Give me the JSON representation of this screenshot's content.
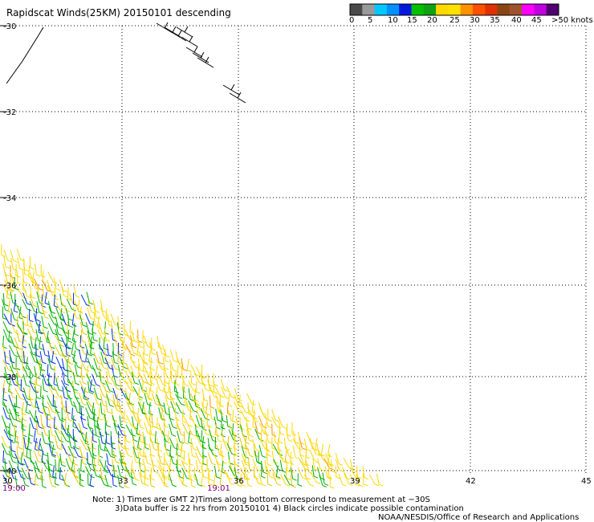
{
  "title": "Rapidscat Winds(25KM) 20150101 descending",
  "legend": {
    "colors": [
      "#4a4a4a",
      "#9a9a9a",
      "#00c8ff",
      "#0090ff",
      "#0018e0",
      "#00c000",
      "#10a010",
      "#ffd800",
      "#ffe000",
      "#ff9000",
      "#ff5000",
      "#e03000",
      "#8b4513",
      "#a0522d",
      "#ff00ff",
      "#c000e0",
      "#500070"
    ],
    "labels": [
      "0",
      "5",
      "10",
      "15",
      "20",
      "25",
      "30",
      "35",
      "40",
      "45",
      ">50 knots"
    ]
  },
  "axes": {
    "lat_labels": [
      "-30",
      "-32",
      "-34",
      "-36",
      "-38",
      "-40"
    ],
    "lon_labels": [
      "30",
      "33",
      "36",
      "39",
      "42",
      "45"
    ]
  },
  "times": [
    "19:00",
    "19:01"
  ],
  "notes": {
    "line1": "Note: 1) Times are GMT 2)Times along bottom correspond to measurement at −30S",
    "line2": "3)Data buffer is 22 hrs from 20150101 4) Black circles indicate possible contamination",
    "line3": "NOAA/NESDIS/Office of Research and Applications"
  }
}
